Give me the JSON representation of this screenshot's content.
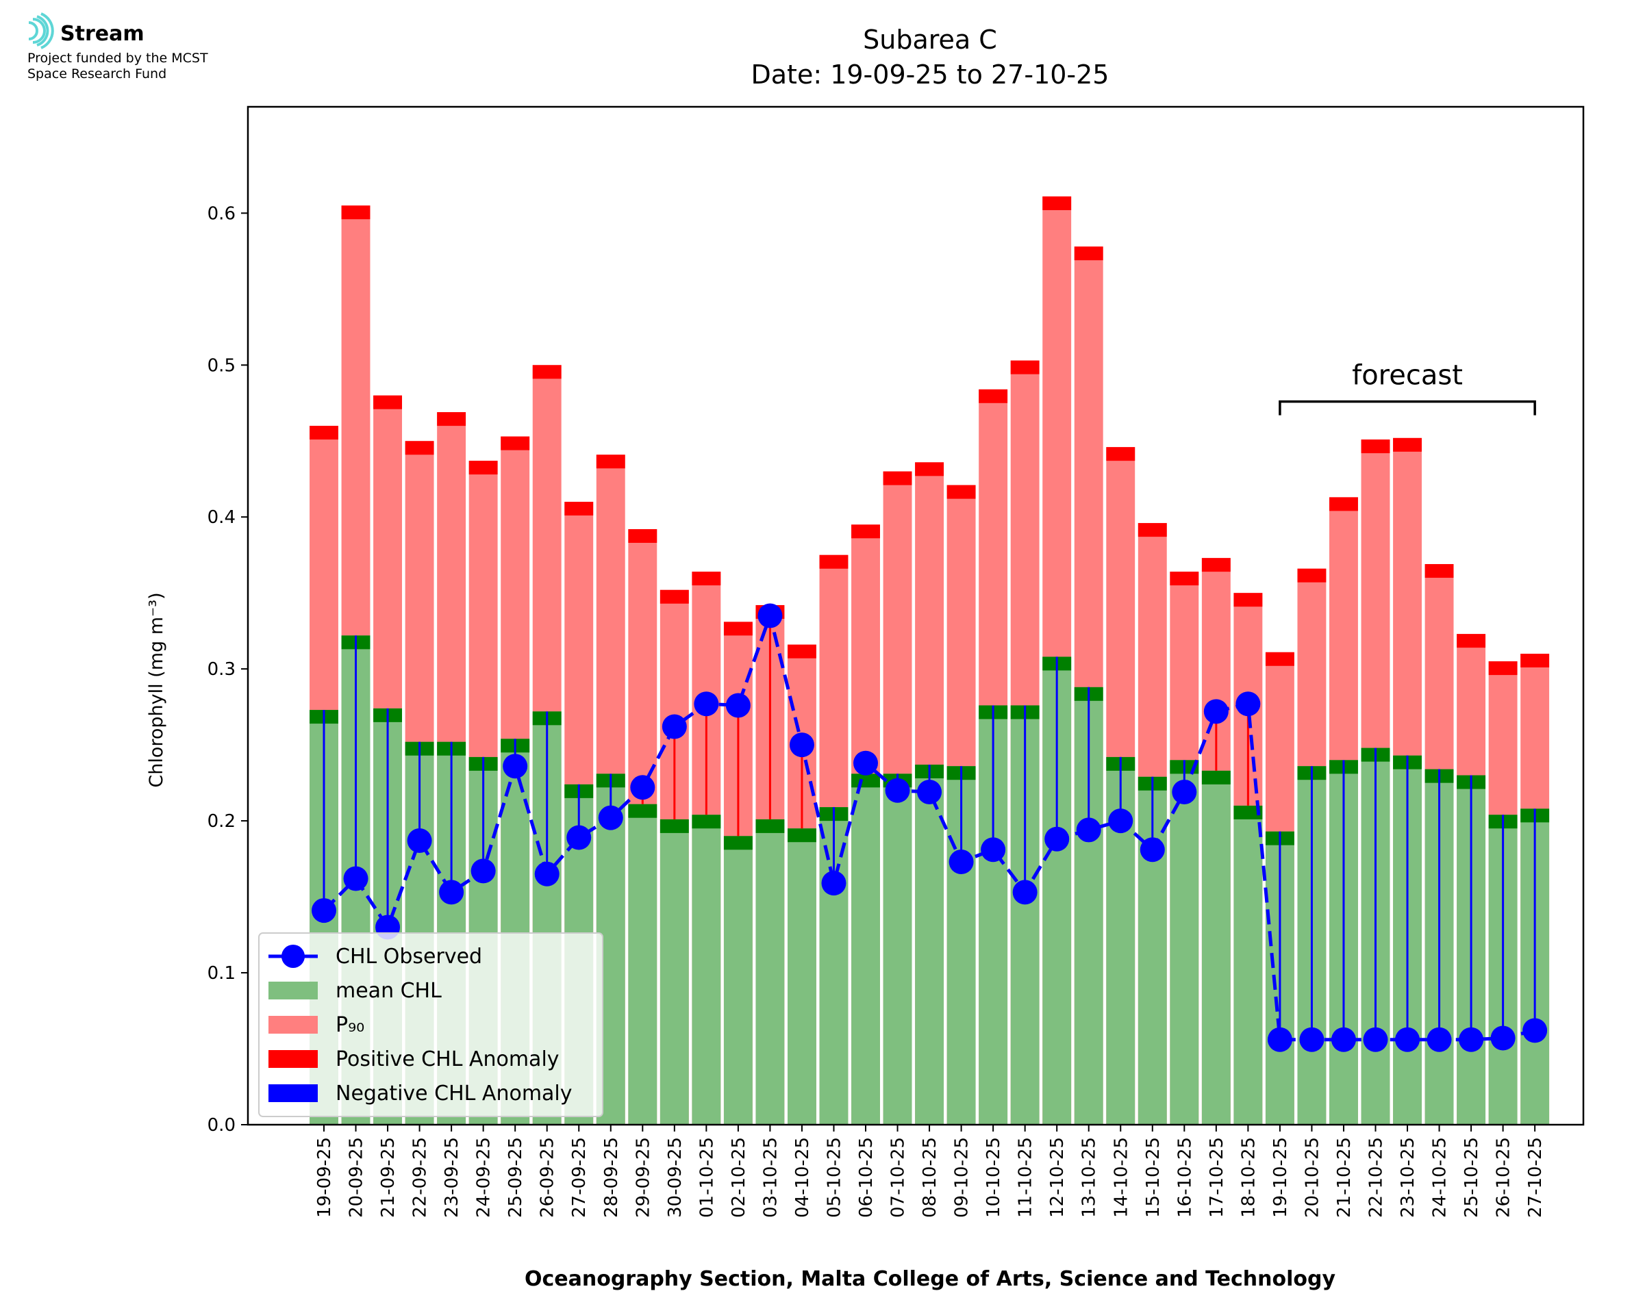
{
  "logo": {
    "name": "Stream",
    "line1": "Project funded by the MCST",
    "line2": "Space Research Fund"
  },
  "chart_data": {
    "type": "bar",
    "title": "Subarea C",
    "subtitle": "Date: 19-09-25 to 27-10-25",
    "xlabel": "Oceanography Section, Malta College of Arts, Science and Technology",
    "ylabel": "Chlorophyll (mg m⁻³)",
    "ylim": [
      0,
      0.67
    ],
    "yticks": [
      "0.0",
      "0.1",
      "0.2",
      "0.3",
      "0.4",
      "0.5",
      "0.6"
    ],
    "grid": false,
    "legend_position": "lower-left",
    "categories": [
      "19-09-25",
      "20-09-25",
      "21-09-25",
      "22-09-25",
      "23-09-25",
      "24-09-25",
      "25-09-25",
      "26-09-25",
      "27-09-25",
      "28-09-25",
      "29-09-25",
      "30-09-25",
      "01-10-25",
      "02-10-25",
      "03-10-25",
      "04-10-25",
      "05-10-25",
      "06-10-25",
      "07-10-25",
      "08-10-25",
      "09-10-25",
      "10-10-25",
      "11-10-25",
      "12-10-25",
      "13-10-25",
      "14-10-25",
      "15-10-25",
      "16-10-25",
      "17-10-25",
      "18-10-25",
      "19-10-25",
      "20-10-25",
      "21-10-25",
      "22-10-25",
      "23-10-25",
      "24-10-25",
      "25-10-25",
      "26-10-25",
      "27-10-25"
    ],
    "series": [
      {
        "name": "mean CHL",
        "color": "#7fbf7f",
        "edge_color": "#007f00",
        "values": [
          0.273,
          0.322,
          0.274,
          0.252,
          0.252,
          0.242,
          0.254,
          0.272,
          0.224,
          0.231,
          0.211,
          0.201,
          0.204,
          0.19,
          0.201,
          0.195,
          0.209,
          0.231,
          0.231,
          0.237,
          0.236,
          0.276,
          0.276,
          0.308,
          0.288,
          0.242,
          0.229,
          0.24,
          0.233,
          0.21,
          0.193,
          0.236,
          0.24,
          0.248,
          0.243,
          0.234,
          0.23,
          0.204,
          0.208
        ]
      },
      {
        "name": "P₉₀",
        "color": "#ff7f7f",
        "edge_color": "#ff0000",
        "values": [
          0.46,
          0.605,
          0.48,
          0.45,
          0.469,
          0.437,
          0.453,
          0.5,
          0.41,
          0.441,
          0.392,
          0.352,
          0.364,
          0.331,
          0.342,
          0.316,
          0.375,
          0.395,
          0.43,
          0.436,
          0.421,
          0.484,
          0.503,
          0.611,
          0.578,
          0.446,
          0.396,
          0.364,
          0.373,
          0.35,
          0.311,
          0.366,
          0.413,
          0.451,
          0.452,
          0.369,
          0.323,
          0.305,
          0.31
        ]
      },
      {
        "name": "CHL Observed",
        "color": "#0000ff",
        "values": [
          0.141,
          0.162,
          0.13,
          0.187,
          0.153,
          0.167,
          0.236,
          0.165,
          0.189,
          0.202,
          0.222,
          0.262,
          0.277,
          0.276,
          0.335,
          0.25,
          0.159,
          0.238,
          0.22,
          0.219,
          0.173,
          0.181,
          0.153,
          0.188,
          0.194,
          0.2,
          0.181,
          0.219,
          0.272,
          0.277,
          0.056,
          0.056,
          0.056,
          0.056,
          0.056,
          0.056,
          0.056,
          0.057,
          0.062
        ]
      }
    ],
    "legend": [
      {
        "label": "CHL Observed",
        "kind": "line-marker",
        "color": "#0000ff"
      },
      {
        "label": "mean CHL",
        "kind": "patch",
        "color": "#7fbf7f"
      },
      {
        "label": "P₉₀",
        "kind": "patch",
        "color": "#ff7f7f"
      },
      {
        "label": "Positive CHL Anomaly",
        "kind": "patch",
        "color": "#ff0000"
      },
      {
        "label": "Negative CHL Anomaly",
        "kind": "patch",
        "color": "#0000ff"
      }
    ],
    "annotation": {
      "text": "forecast",
      "start_category": "19-10-25",
      "end_category": "27-10-25",
      "y": 0.476
    }
  }
}
